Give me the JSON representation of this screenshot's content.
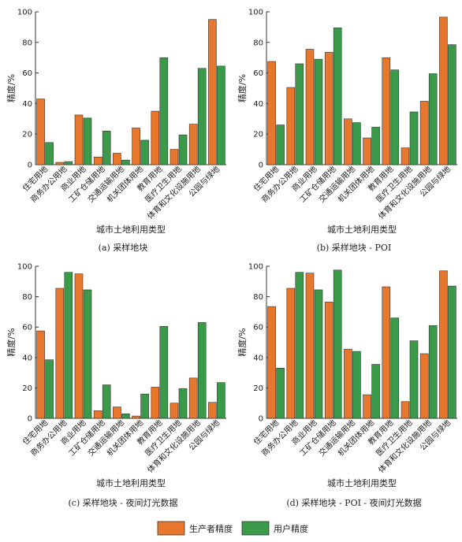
{
  "legend": {
    "producer": "生产者精度",
    "user": "用户精度"
  },
  "colors": {
    "producer": "#e8772e",
    "user": "#3a9a4a"
  },
  "categories": [
    "住宅用地",
    "商务办公用地",
    "商业用地",
    "工矿仓储用地",
    "交通运输用地",
    "机关团体用地",
    "教育用地",
    "医疗卫生用地",
    "体育和文化设施用地",
    "公园与绿地"
  ],
  "chart_data": [
    {
      "type": "bar",
      "caption": "(a) 采样地块",
      "xlabel": "城市土地利用类型",
      "ylabel": "精度/%",
      "ylim": [
        0,
        100
      ],
      "yticks": [
        0,
        20,
        40,
        60,
        80,
        100
      ],
      "series": [
        {
          "name": "生产者精度",
          "values": [
            43,
            1.5,
            32.5,
            5,
            7.5,
            24,
            35,
            10,
            26.5,
            95
          ]
        },
        {
          "name": "用户精度",
          "values": [
            14.5,
            2,
            30.5,
            22,
            3,
            16,
            70,
            19.5,
            63,
            64.5
          ]
        }
      ]
    },
    {
      "type": "bar",
      "caption": "(b) 采样地块 - POI",
      "xlabel": "城市土地利用类型",
      "ylabel": "精度/%",
      "ylim": [
        0,
        100
      ],
      "yticks": [
        0,
        20,
        40,
        60,
        80,
        100
      ],
      "series": [
        {
          "name": "生产者精度",
          "values": [
            67.5,
            50.5,
            75.5,
            73.5,
            30,
            17.5,
            70,
            11,
            41.5,
            96.5
          ]
        },
        {
          "name": "用户精度",
          "values": [
            26,
            66,
            69,
            89.5,
            27.5,
            24.5,
            62,
            34.5,
            59.5,
            78.5
          ]
        }
      ]
    },
    {
      "type": "bar",
      "caption": "(c) 采样地块 - 夜间灯光数据",
      "xlabel": "城市土地利用类型",
      "ylabel": "精度/%",
      "ylim": [
        0,
        100
      ],
      "yticks": [
        0,
        20,
        40,
        60,
        80,
        100
      ],
      "series": [
        {
          "name": "生产者精度",
          "values": [
            57.5,
            85.5,
            95,
            5,
            7.5,
            1.5,
            20.5,
            10,
            26.5,
            10.5
          ]
        },
        {
          "name": "用户精度",
          "values": [
            38.5,
            96,
            84.5,
            22,
            3,
            16,
            60.5,
            19.5,
            63,
            23.5
          ]
        }
      ]
    },
    {
      "type": "bar",
      "caption": "(d) 采样地块 - POI - 夜间灯光数据",
      "xlabel": "城市土地利用类型",
      "ylabel": "精度/%",
      "ylim": [
        0,
        100
      ],
      "yticks": [
        0,
        20,
        40,
        60,
        80,
        100
      ],
      "series": [
        {
          "name": "生产者精度",
          "values": [
            73.5,
            85.5,
            95.5,
            76.5,
            45.5,
            15.5,
            86.5,
            11,
            42.5,
            97
          ]
        },
        {
          "name": "用户精度",
          "values": [
            33,
            96,
            84.5,
            97.5,
            44,
            35.5,
            66,
            51,
            61,
            87
          ]
        }
      ]
    }
  ]
}
